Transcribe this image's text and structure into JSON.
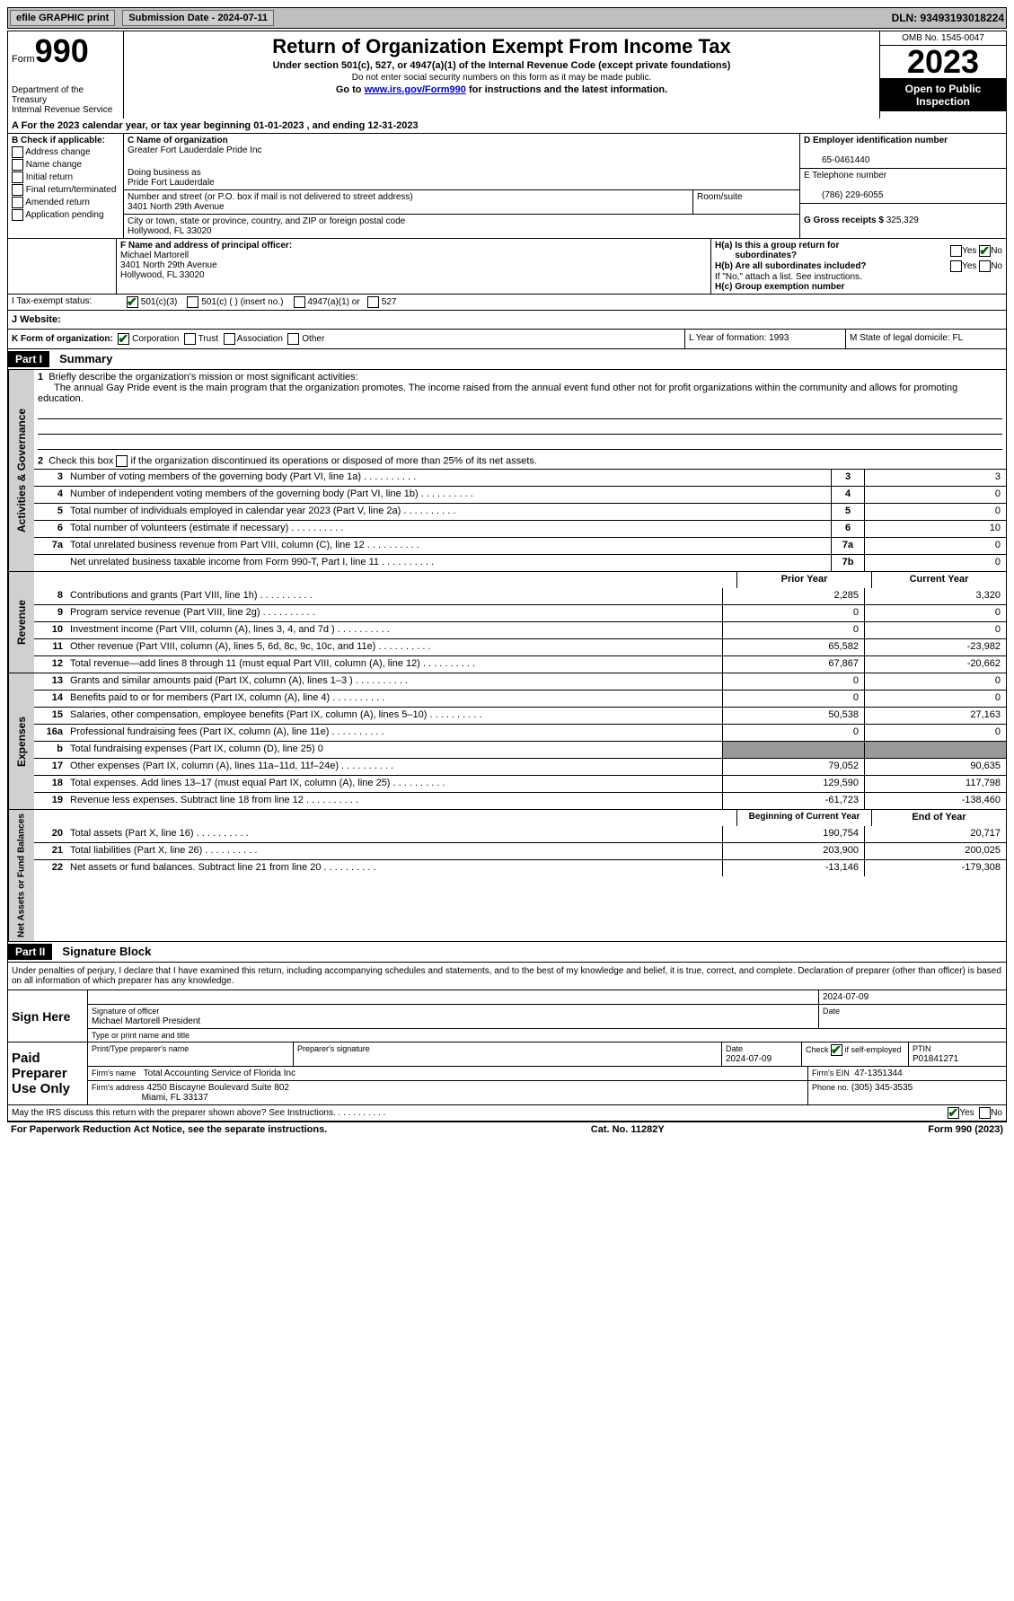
{
  "top_bar": {
    "efile": "efile GRAPHIC print",
    "submission": "Submission Date - 2024-07-11",
    "dln": "DLN: 93493193018224"
  },
  "header": {
    "form_label": "Form",
    "form_number": "990",
    "title": "Return of Organization Exempt From Income Tax",
    "subtitle": "Under section 501(c), 527, or 4947(a)(1) of the Internal Revenue Code (except private foundations)",
    "note1": "Do not enter social security numbers on this form as it may be made public.",
    "note2_prefix": "Go to ",
    "note2_link": "www.irs.gov/Form990",
    "note2_suffix": " for instructions and the latest information.",
    "dept": "Department of the Treasury",
    "irs": "Internal Revenue Service",
    "omb": "OMB No. 1545-0047",
    "year": "2023",
    "inspection": "Open to Public Inspection"
  },
  "row_a": "A For the 2023 calendar year, or tax year beginning 01-01-2023   , and ending 12-31-2023",
  "section_b": {
    "header": "B Check if applicable:",
    "items": [
      "Address change",
      "Name change",
      "Initial return",
      "Final return/terminated",
      "Amended return",
      "Application pending"
    ]
  },
  "section_c": {
    "label": "C Name of organization",
    "name": "Greater Fort Lauderdale Pride Inc",
    "dba_label": "Doing business as",
    "dba": "Pride Fort Lauderdale",
    "street_label": "Number and street (or P.O. box if mail is not delivered to street address)",
    "street": "3401 North 29th Avenue",
    "room_label": "Room/suite",
    "city_label": "City or town, state or province, country, and ZIP or foreign postal code",
    "city": "Hollywood, FL  33020"
  },
  "section_d": {
    "label": "D Employer identification number",
    "ein": "65-0461440",
    "phone_label": "E Telephone number",
    "phone": "(786) 229-6055",
    "receipts_label": "G Gross receipts $",
    "receipts": "325,329"
  },
  "section_f": {
    "label": "F  Name and address of principal officer:",
    "name": "Michael Martorell",
    "street": "3401 North 29th Avenue",
    "city": "Hollywood, FL  33020"
  },
  "section_h": {
    "ha": "H(a)  Is this a group return for",
    "ha2": "subordinates?",
    "hb": "H(b)  Are all subordinates included?",
    "hb_note": "If \"No,\" attach a list. See instructions.",
    "hc": "H(c)  Group exemption number"
  },
  "row_i": {
    "label": "I    Tax-exempt status:",
    "opt1": "501(c)(3)",
    "opt2": "501(c) (  ) (insert no.)",
    "opt3": "4947(a)(1) or",
    "opt4": "527"
  },
  "row_j": {
    "label": "J   Website:"
  },
  "row_k": {
    "label": "K Form of organization:",
    "opts": [
      "Corporation",
      "Trust",
      "Association",
      "Other"
    ],
    "l": "L Year of formation: 1993",
    "m": "M State of legal domicile: FL"
  },
  "part1": {
    "header": "Part I",
    "title": "Summary",
    "line1_label": "Briefly describe the organization's mission or most significant activities:",
    "line1_text": "The annual Gay Pride event is the main program that the organization promotes. The income raised from the annual event fund other not for profit organizations within the community and allows for promoting education.",
    "line2": "Check this box     if the organization discontinued its operations or disposed of more than 25% of its net assets.",
    "line3": "Number of voting members of the governing body (Part VI, line 1a)",
    "line4": "Number of independent voting members of the governing body (Part VI, line 1b)",
    "line5": "Total number of individuals employed in calendar year 2023 (Part V, line 2a)",
    "line6": "Total number of volunteers (estimate if necessary)",
    "line7a": "Total unrelated business revenue from Part VIII, column (C), line 12",
    "line7b": "Net unrelated business taxable income from Form 990-T, Part I, line 11",
    "vals": {
      "3": "3",
      "4": "0",
      "5": "0",
      "6": "10",
      "7a": "0",
      "7b": "0"
    },
    "col_prior": "Prior Year",
    "col_current": "Current Year",
    "revenue_rows": [
      {
        "num": "8",
        "label": "Contributions and grants (Part VIII, line 1h)",
        "prior": "2,285",
        "current": "3,320"
      },
      {
        "num": "9",
        "label": "Program service revenue (Part VIII, line 2g)",
        "prior": "0",
        "current": "0"
      },
      {
        "num": "10",
        "label": "Investment income (Part VIII, column (A), lines 3, 4, and 7d )",
        "prior": "0",
        "current": "0"
      },
      {
        "num": "11",
        "label": "Other revenue (Part VIII, column (A), lines 5, 6d, 8c, 9c, 10c, and 11e)",
        "prior": "65,582",
        "current": "-23,982"
      },
      {
        "num": "12",
        "label": "Total revenue—add lines 8 through 11 (must equal Part VIII, column (A), line 12)",
        "prior": "67,867",
        "current": "-20,662"
      }
    ],
    "expense_rows": [
      {
        "num": "13",
        "label": "Grants and similar amounts paid (Part IX, column (A), lines 1–3 )",
        "prior": "0",
        "current": "0"
      },
      {
        "num": "14",
        "label": "Benefits paid to or for members (Part IX, column (A), line 4)",
        "prior": "0",
        "current": "0"
      },
      {
        "num": "15",
        "label": "Salaries, other compensation, employee benefits (Part IX, column (A), lines 5–10)",
        "prior": "50,538",
        "current": "27,163"
      },
      {
        "num": "16a",
        "label": "Professional fundraising fees (Part IX, column (A), line 11e)",
        "prior": "0",
        "current": "0"
      },
      {
        "num": "b",
        "label": "Total fundraising expenses (Part IX, column (D), line 25) 0",
        "prior": "",
        "current": "",
        "gray": true
      },
      {
        "num": "17",
        "label": "Other expenses (Part IX, column (A), lines 11a–11d, 11f–24e)",
        "prior": "79,052",
        "current": "90,635"
      },
      {
        "num": "18",
        "label": "Total expenses. Add lines 13–17 (must equal Part IX, column (A), line 25)",
        "prior": "129,590",
        "current": "117,798"
      },
      {
        "num": "19",
        "label": "Revenue less expenses. Subtract line 18 from line 12",
        "prior": "-61,723",
        "current": "-138,460"
      }
    ],
    "col_begin": "Beginning of Current Year",
    "col_end": "End of Year",
    "net_rows": [
      {
        "num": "20",
        "label": "Total assets (Part X, line 16)",
        "prior": "190,754",
        "current": "20,717"
      },
      {
        "num": "21",
        "label": "Total liabilities (Part X, line 26)",
        "prior": "203,900",
        "current": "200,025"
      },
      {
        "num": "22",
        "label": "Net assets or fund balances. Subtract line 21 from line 20",
        "prior": "-13,146",
        "current": "-179,308"
      }
    ]
  },
  "side_labels": {
    "gov": "Activities & Governance",
    "rev": "Revenue",
    "exp": "Expenses",
    "net": "Net Assets or Fund Balances"
  },
  "part2": {
    "header": "Part II",
    "title": "Signature Block",
    "intro": "Under penalties of perjury, I declare that I have examined this return, including accompanying schedules and statements, and to the best of my knowledge and belief, it is true, correct, and complete. Declaration of preparer (other than officer) is based on all information of which preparer has any knowledge.",
    "sign_here": "Sign Here",
    "sig_officer_label": "Signature of officer",
    "sig_date": "2024-07-09",
    "officer_name": "Michael Martorell President",
    "type_label": "Type or print name and title",
    "paid": "Paid Preparer Use Only",
    "prep_name_label": "Print/Type preparer's name",
    "prep_sig_label": "Preparer's signature",
    "date_label": "Date",
    "date": "2024-07-09",
    "check_label": "Check          if self-employed",
    "ptin_label": "PTIN",
    "ptin": "P01841271",
    "firm_label": "Firm's name",
    "firm_name": "Total Accounting Service of Florida Inc",
    "firm_ein_label": "Firm's EIN",
    "firm_ein": "47-1351344",
    "firm_addr_label": "Firm's address",
    "firm_addr": "4250 Biscayne Boulevard Suite 802",
    "firm_city": "Miami, FL  33137",
    "firm_phone_label": "Phone no.",
    "firm_phone": "(305) 345-3535",
    "discuss": "May the IRS discuss this return with the preparer shown above? See Instructions."
  },
  "footer": {
    "left": "For Paperwork Reduction Act Notice, see the separate instructions.",
    "mid": "Cat. No. 11282Y",
    "right": "Form 990 (2023)"
  },
  "yes": "Yes",
  "no": "No"
}
